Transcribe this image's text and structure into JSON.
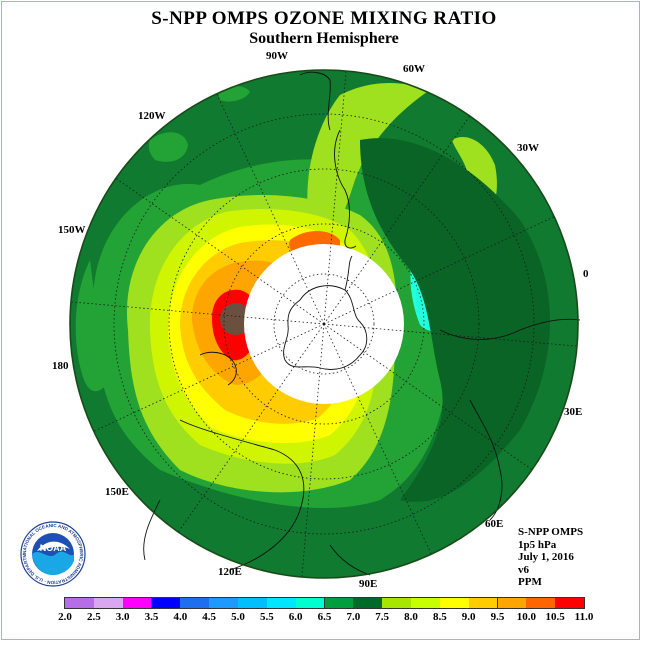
{
  "title": "S-NPP OMPS OZONE MIXING RATIO",
  "subtitle": "Southern Hemisphere",
  "longitude_labels": {
    "w90": "90W",
    "w60": "60W",
    "w120": "120W",
    "w30": "30W",
    "w150": "150W",
    "e0": "0",
    "e180": "180",
    "e30": "30E",
    "e150": "150E",
    "e60": "60E",
    "e120": "120E",
    "e90": "90E"
  },
  "info": {
    "line1": "S-NPP OMPS",
    "line2": "1p5 hPa",
    "line3": "July 1, 2016",
    "line4": "v6",
    "line5": "PPM"
  },
  "logo": {
    "text": "NOAA",
    "ring_text": "NATIONAL OCEANIC AND ATMOSPHERIC ADMINISTRATION · U.S. DEPARTMENT OF COMMERCE"
  },
  "colorbar": {
    "labels": [
      "2.0",
      "2.5",
      "3.0",
      "3.5",
      "4.0",
      "4.5",
      "5.0",
      "5.5",
      "6.0",
      "6.5",
      "7.0",
      "7.5",
      "8.0",
      "8.5",
      "9.0",
      "9.5",
      "10.0",
      "10.5",
      "11.0"
    ],
    "colors": [
      "#b56ee8",
      "#d9a6f0",
      "#ff00ff",
      "#0000ff",
      "#1e6ef0",
      "#1e9aff",
      "#00bfff",
      "#00e6ff",
      "#00ffd0",
      "#009e3c",
      "#006a28",
      "#a6e600",
      "#c8ff00",
      "#ffff00",
      "#ffcc00",
      "#ffa500",
      "#ff6600",
      "#ff0000",
      "#7a4a2a"
    ]
  },
  "map_colors": {
    "ocean_green": "#0f7a30",
    "dark_green": "#096426",
    "mid_green": "#23a235",
    "light_green": "#9fe01f",
    "yellow_green": "#d0f500",
    "yellow": "#ffff00",
    "gold": "#ffcc00",
    "orange": "#ffa500",
    "dark_orange": "#ff6a00",
    "red": "#ff0000",
    "brown": "#6b5040",
    "cyan": "#22ffdd"
  }
}
